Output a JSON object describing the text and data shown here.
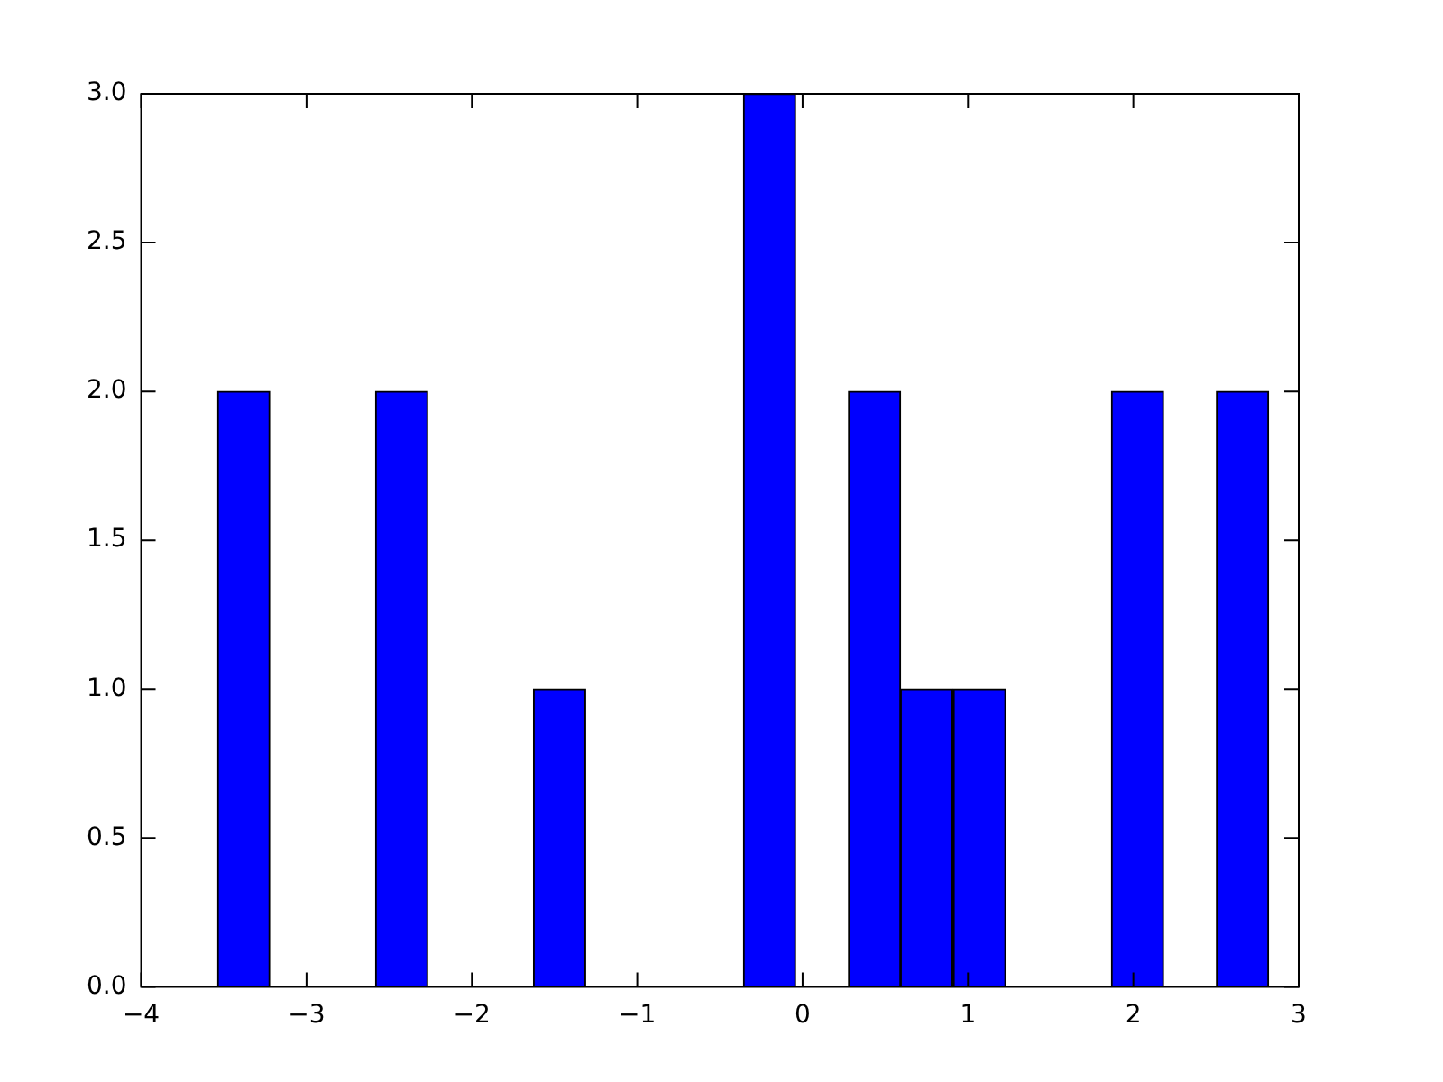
{
  "chart_data": {
    "type": "histogram",
    "bins": [
      -3.54,
      -3.22,
      -2.9,
      -2.58,
      -2.27,
      -1.95,
      -1.63,
      -1.31,
      -0.99,
      -0.68,
      -0.36,
      -0.04,
      0.28,
      0.59,
      0.91,
      1.23,
      1.55,
      1.87,
      2.18,
      2.5,
      2.82
    ],
    "values": [
      2,
      0,
      0,
      2,
      0,
      0,
      1,
      0,
      0,
      0,
      3,
      0,
      2,
      1,
      1,
      0,
      0,
      2,
      0,
      2
    ],
    "color": "#0000ff",
    "xlim": [
      -4,
      3
    ],
    "xticks": [
      {
        "value": -4,
        "label": "−4"
      },
      {
        "value": -3,
        "label": "−3"
      },
      {
        "value": -2,
        "label": "−2"
      },
      {
        "value": -1,
        "label": "−1"
      },
      0,
      1,
      2,
      3
    ],
    "ylim": [
      0,
      3
    ],
    "yticks": [
      {
        "value": 0,
        "label": "0.0"
      },
      {
        "value": 0.5,
        "label": "0.5"
      },
      {
        "value": 1,
        "label": "1.0"
      },
      {
        "value": 1.5,
        "label": "1.5"
      },
      {
        "value": 2,
        "label": "2.0"
      },
      {
        "value": 2.5,
        "label": "2.5"
      },
      {
        "value": 3,
        "label": "3.0"
      }
    ],
    "grid": false
  }
}
